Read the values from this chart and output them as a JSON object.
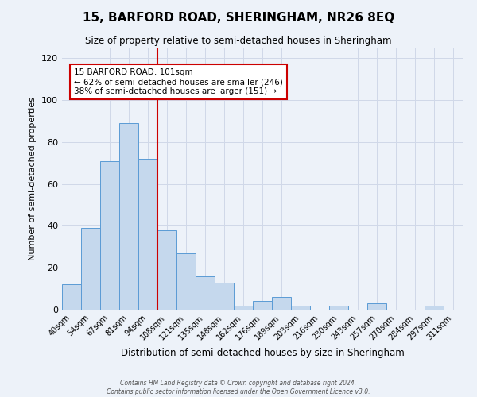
{
  "title": "15, BARFORD ROAD, SHERINGHAM, NR26 8EQ",
  "subtitle": "Size of property relative to semi-detached houses in Sheringham",
  "xlabel": "Distribution of semi-detached houses by size in Sheringham",
  "ylabel": "Number of semi-detached properties",
  "bin_labels": [
    "40sqm",
    "54sqm",
    "67sqm",
    "81sqm",
    "94sqm",
    "108sqm",
    "121sqm",
    "135sqm",
    "148sqm",
    "162sqm",
    "176sqm",
    "189sqm",
    "203sqm",
    "216sqm",
    "230sqm",
    "243sqm",
    "257sqm",
    "270sqm",
    "284sqm",
    "297sqm",
    "311sqm"
  ],
  "bar_values": [
    12,
    39,
    71,
    89,
    72,
    38,
    27,
    16,
    13,
    2,
    4,
    6,
    2,
    0,
    2,
    0,
    3,
    0,
    0,
    2,
    0
  ],
  "bar_color": "#c5d8ed",
  "bar_edge_color": "#5b9bd5",
  "ylim": [
    0,
    125
  ],
  "yticks": [
    0,
    20,
    40,
    60,
    80,
    100,
    120
  ],
  "grid_color": "#d0d8e8",
  "property_label": "15 BARFORD ROAD: 101sqm",
  "pct_smaller": 62,
  "count_smaller": 246,
  "pct_larger": 38,
  "count_larger": 151,
  "vline_color": "#cc0000",
  "annotation_box_color": "#ffffff",
  "annotation_border_color": "#cc0000",
  "footer_line1": "Contains HM Land Registry data © Crown copyright and database right 2024.",
  "footer_line2": "Contains public sector information licensed under the Open Government Licence v3.0.",
  "background_color": "#edf2f9",
  "plot_bg_color": "#edf2f9"
}
